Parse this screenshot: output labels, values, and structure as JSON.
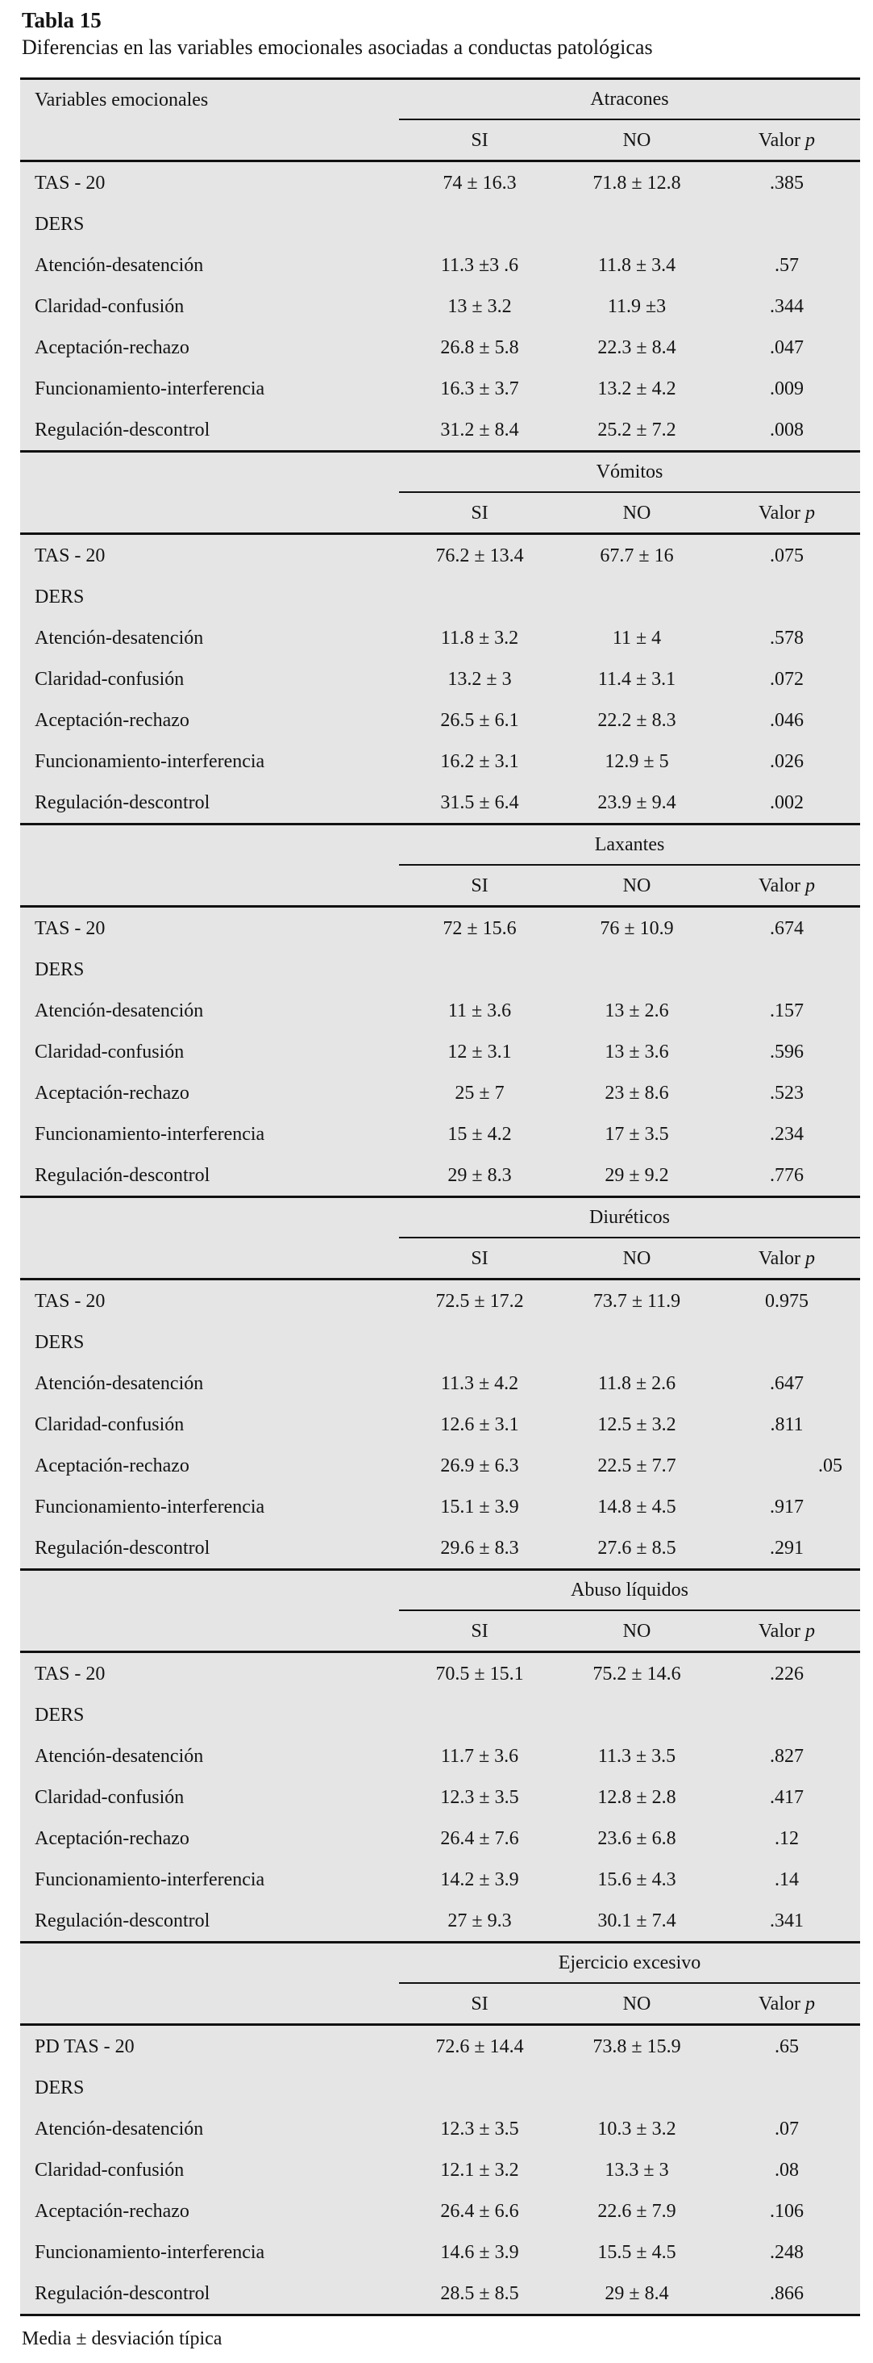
{
  "page": {
    "title": "Tabla 15",
    "subtitle": "Diferencias en las variables emocionales asociadas a conductas patológicas",
    "footnote": "Media ± desviación típica"
  },
  "table": {
    "first_col_header": "Variables emocionales",
    "col_si": "SI",
    "col_no": "NO",
    "col_p_word": "Valor",
    "col_p_sym": "p",
    "background_color": "#e5e5e5",
    "rule_color": "#111111"
  },
  "sections": [
    {
      "behavior": "Atracones",
      "rows": [
        {
          "label": "TAS - 20",
          "si": "74 ± 16.3",
          "no": "71.8 ± 12.8",
          "p": ".385"
        },
        {
          "label": "DERS",
          "si": "",
          "no": "",
          "p": ""
        },
        {
          "label": "Atención-desatención",
          "si": "11.3 ±3 .6",
          "no": "11.8 ± 3.4",
          "p": ".57"
        },
        {
          "label": "Claridad-confusión",
          "si": "13 ± 3.2",
          "no": "11.9  ±3",
          "p": ".344"
        },
        {
          "label": "Aceptación-rechazo",
          "si": "26.8 ± 5.8",
          "no": "22.3 ± 8.4",
          "p": ".047"
        },
        {
          "label": "Funcionamiento-interferencia",
          "si": "16.3 ± 3.7",
          "no": "13.2 ± 4.2",
          "p": ".009"
        },
        {
          "label": "Regulación-descontrol",
          "si": "31.2 ± 8.4",
          "no": "25.2 ± 7.2",
          "p": ".008"
        }
      ]
    },
    {
      "behavior": "Vómitos",
      "rows": [
        {
          "label": "TAS - 20",
          "si": "76.2 ± 13.4",
          "no": "67.7 ± 16",
          "p": ".075"
        },
        {
          "label": "DERS",
          "si": "",
          "no": "",
          "p": ""
        },
        {
          "label": "Atención-desatención",
          "si": "11.8 ± 3.2",
          "no": "11 ± 4",
          "p": ".578"
        },
        {
          "label": "Claridad-confusión",
          "si": "13.2 ± 3",
          "no": "11.4 ± 3.1",
          "p": ".072"
        },
        {
          "label": "Aceptación-rechazo",
          "si": "26.5 ± 6.1",
          "no": "22.2 ± 8.3",
          "p": ".046"
        },
        {
          "label": "Funcionamiento-interferencia",
          "si": "16.2 ± 3.1",
          "no": "12.9 ± 5",
          "p": ".026"
        },
        {
          "label": "Regulación-descontrol",
          "si": "31.5 ± 6.4",
          "no": "23.9 ± 9.4",
          "p": ".002"
        }
      ]
    },
    {
      "behavior": "Laxantes",
      "rows": [
        {
          "label": "TAS - 20",
          "si": "72 ± 15.6",
          "no": "76 ± 10.9",
          "p": ".674"
        },
        {
          "label": "DERS",
          "si": "",
          "no": "",
          "p": ""
        },
        {
          "label": "Atención-desatención",
          "si": "11 ± 3.6",
          "no": "13 ± 2.6",
          "p": ".157"
        },
        {
          "label": "Claridad-confusión",
          "si": "12 ± 3.1",
          "no": "13 ± 3.6",
          "p": ".596"
        },
        {
          "label": "Aceptación-rechazo",
          "si": "25 ± 7",
          "no": "23 ± 8.6",
          "p": ".523"
        },
        {
          "label": "Funcionamiento-interferencia",
          "si": "15 ± 4.2",
          "no": "17 ± 3.5",
          "p": ".234"
        },
        {
          "label": "Regulación-descontrol",
          "si": "29 ± 8.3",
          "no": "29 ± 9.2",
          "p": ".776"
        }
      ]
    },
    {
      "behavior": "Diuréticos",
      "rows": [
        {
          "label": "TAS - 20",
          "si": "72.5 ± 17.2",
          "no": "73.7 ± 11.9",
          "p": "0.975"
        },
        {
          "label": "DERS",
          "si": "",
          "no": "",
          "p": ""
        },
        {
          "label": "Atención-desatención",
          "si": "11.3 ± 4.2",
          "no": "11.8 ± 2.6",
          "p": ".647"
        },
        {
          "label": "Claridad-confusión",
          "si": "12.6 ± 3.1",
          "no": "12.5 ± 3.2",
          "p": ".811"
        },
        {
          "label": "Aceptación-rechazo",
          "si": "26.9 ± 6.3",
          "no": "22.5 ± 7.7",
          "p": ".05",
          "p_align": "right"
        },
        {
          "label": "Funcionamiento-interferencia",
          "si": "15.1 ± 3.9",
          "no": "14.8 ± 4.5",
          "p": ".917"
        },
        {
          "label": "Regulación-descontrol",
          "si": "29.6 ± 8.3",
          "no": "27.6 ± 8.5",
          "p": ".291"
        }
      ]
    },
    {
      "behavior": "Abuso líquidos",
      "rows": [
        {
          "label": "TAS - 20",
          "si": "70.5 ± 15.1",
          "no": "75.2 ± 14.6",
          "p": ".226"
        },
        {
          "label": "DERS",
          "si": "",
          "no": "",
          "p": ""
        },
        {
          "label": "Atención-desatención",
          "si": "11.7 ± 3.6",
          "no": "11.3 ± 3.5",
          "p": ".827"
        },
        {
          "label": "Claridad-confusión",
          "si": "12.3 ± 3.5",
          "no": "12.8 ± 2.8",
          "p": ".417"
        },
        {
          "label": "Aceptación-rechazo",
          "si": "26.4 ± 7.6",
          "no": "23.6 ± 6.8",
          "p": ".12"
        },
        {
          "label": "Funcionamiento-interferencia",
          "si": "14.2 ± 3.9",
          "no": "15.6 ± 4.3",
          "p": ".14"
        },
        {
          "label": "Regulación-descontrol",
          "si": "27 ± 9.3",
          "no": "30.1 ± 7.4",
          "p": ".341"
        }
      ]
    },
    {
      "behavior": "Ejercicio excesivo",
      "rows": [
        {
          "label": "PD TAS - 20",
          "si": "72.6 ± 14.4",
          "no": "73.8 ± 15.9",
          "p": ".65"
        },
        {
          "label": "DERS",
          "si": "",
          "no": "",
          "p": ""
        },
        {
          "label": "Atención-desatención",
          "si": "12.3 ± 3.5",
          "no": "10.3 ± 3.2",
          "p": ".07"
        },
        {
          "label": "Claridad-confusión",
          "si": "12.1 ± 3.2",
          "no": "13.3 ± 3",
          "p": ".08"
        },
        {
          "label": "Aceptación-rechazo",
          "si": "26.4 ± 6.6",
          "no": "22.6 ± 7.9",
          "p": ".106"
        },
        {
          "label": "Funcionamiento-interferencia",
          "si": "14.6 ± 3.9",
          "no": "15.5 ± 4.5",
          "p": ".248"
        },
        {
          "label": "Regulación-descontrol",
          "si": "28.5 ± 8.5",
          "no": "29 ± 8.4",
          "p": ".866"
        }
      ]
    }
  ]
}
